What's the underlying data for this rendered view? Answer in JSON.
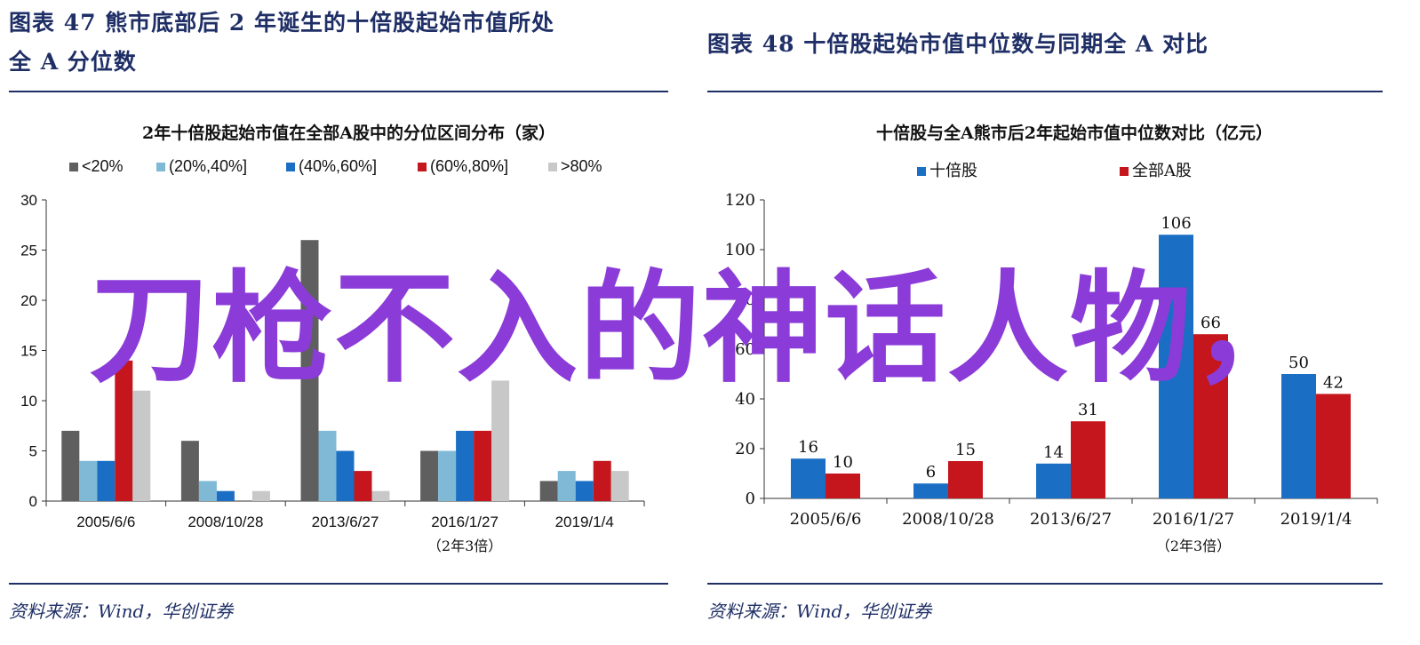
{
  "left_panel": {
    "figure_title_line1": "图表 47   熊市底部后 2 年诞生的十倍股起始市值所处",
    "figure_title_line2": "全 A 分位数",
    "source": "资料来源：Wind，华创证券"
  },
  "right_panel": {
    "figure_title": "图表 48   十倍股起始市值中位数与同期全 A 对比",
    "source": "资料来源：Wind，华创证券"
  },
  "watermark": "刀枪不入的神话人物，",
  "colors": {
    "dark_gray": "#5f5f5f",
    "light_blue": "#7fb9d6",
    "blue": "#1a6fc4",
    "red": "#c4161c",
    "light_gray": "#c8c8c8",
    "navy": "#1f2f66",
    "watermark": "#8b3bd8"
  },
  "chart_data": [
    {
      "type": "bar",
      "title": "2年十倍股起始市值在全部A股中的分位区间分布（家）",
      "categories": [
        "2005/6/6",
        "2008/10/28",
        "2013/6/27",
        "2016/1/27",
        "2019/1/4"
      ],
      "category_note": "（2年3倍）",
      "note_under_category": "2016/1/27",
      "series": [
        {
          "name": "<20%",
          "color": "#5f5f5f",
          "values": [
            7,
            6,
            26,
            5,
            2
          ]
        },
        {
          "name": "(20%,40%]",
          "color": "#7fb9d6",
          "values": [
            4,
            2,
            7,
            5,
            3
          ]
        },
        {
          "name": "(40%,60%]",
          "color": "#1a6fc4",
          "values": [
            4,
            1,
            5,
            7,
            2
          ]
        },
        {
          "name": "(60%,80%]",
          "color": "#c4161c",
          "values": [
            14,
            0,
            3,
            7,
            4
          ]
        },
        {
          "name": ">80%",
          "color": "#c8c8c8",
          "values": [
            11,
            1,
            1,
            12,
            3
          ]
        }
      ],
      "ylim": [
        0,
        30
      ],
      "yticks": [
        0,
        5,
        10,
        15,
        20,
        25,
        30
      ],
      "legend": "top",
      "grid": false,
      "data_labels": false
    },
    {
      "type": "bar",
      "title": "十倍股与全A熊市后2年起始市值中位数对比（亿元）",
      "categories": [
        "2005/6/6",
        "2008/10/28",
        "2013/6/27",
        "2016/1/27",
        "2019/1/4"
      ],
      "category_note": "（2年3倍）",
      "note_under_category": "2016/1/27",
      "series": [
        {
          "name": "十倍股",
          "color": "#1a6fc4",
          "values": [
            16,
            6,
            14,
            106,
            50
          ]
        },
        {
          "name": "全部A股",
          "color": "#c4161c",
          "values": [
            10,
            15,
            31,
            66,
            42
          ]
        }
      ],
      "ylim": [
        0,
        120
      ],
      "yticks": [
        0,
        20,
        40,
        60,
        80,
        100,
        120
      ],
      "legend": "top",
      "grid": false,
      "data_labels": true
    }
  ]
}
